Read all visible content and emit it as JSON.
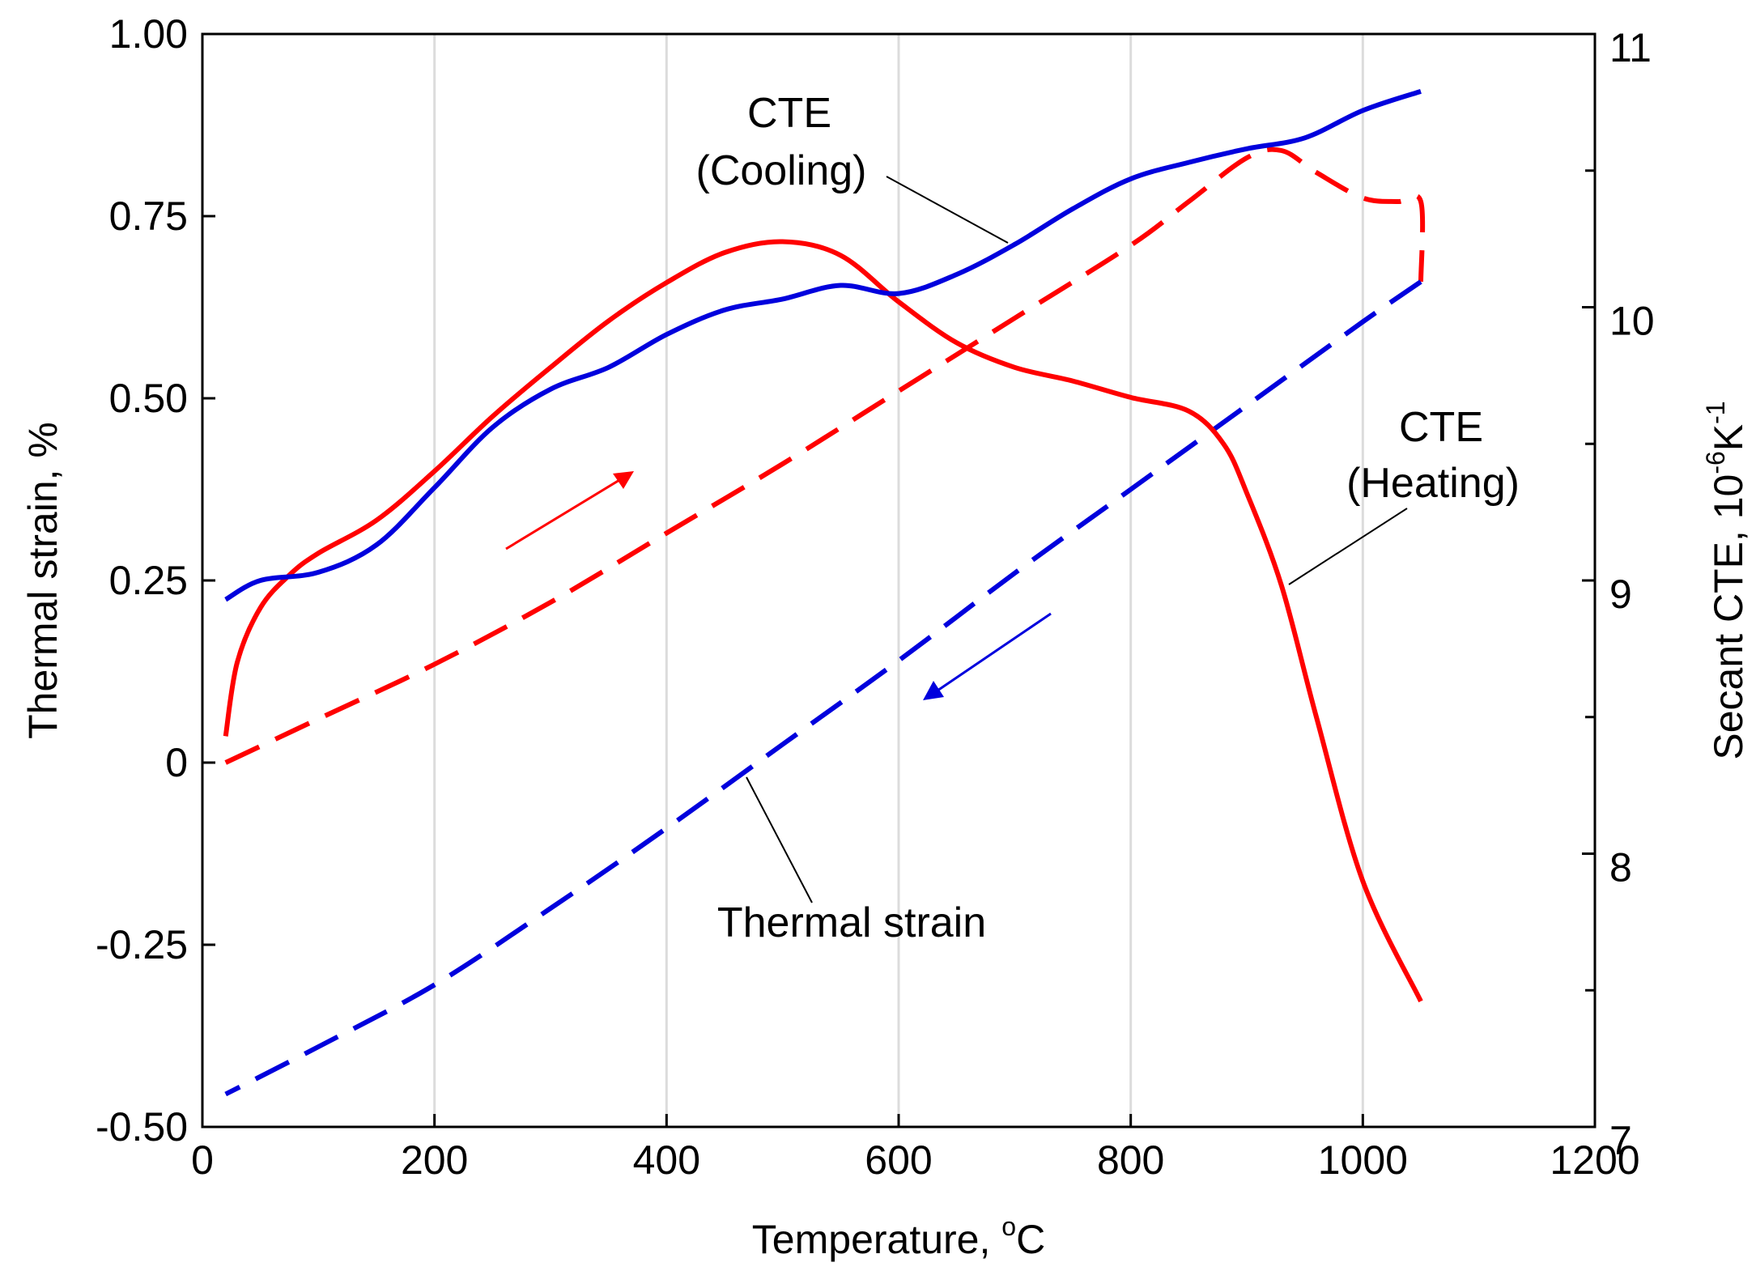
{
  "chart_data": {
    "type": "line",
    "xlabel": "Temperature, ",
    "xlabel_unit_sup": "o",
    "xlabel_unit_tail": "C",
    "ylabel_left": "Thermal strain, %",
    "ylabel_right_main": "Secant CTE,  10",
    "ylabel_right_sup1": "-6",
    "ylabel_right_mid": "K",
    "ylabel_right_sup2": "-1",
    "xlim": [
      0,
      1200
    ],
    "ylim_left": [
      -0.5,
      1.0
    ],
    "ylim_right": [
      7,
      11
    ],
    "x_ticks": [
      "0",
      "200",
      "400",
      "600",
      "800",
      "1000",
      "1200"
    ],
    "y_left_ticks": [
      "-0.50",
      "-0.25",
      "0",
      "0.25",
      "0.50",
      "0.75",
      "1.00"
    ],
    "y_right_ticks": [
      "7",
      "8",
      "9",
      "10",
      "11"
    ],
    "grid": "vertical lines at x ticks",
    "colors": {
      "red": "#ff0000",
      "blue": "#0000dd",
      "grid": "#dcdcdc"
    },
    "annotations": {
      "cte_cooling_line1": "CTE",
      "cte_cooling_line2": "(Cooling)",
      "cte_heating_line1": "CTE",
      "cte_heating_line2": "(Heating)",
      "thermal_strain": "Thermal strain"
    },
    "series": [
      {
        "key": "strain_heating",
        "axis": "left",
        "color": "#ff0000",
        "dash": true,
        "x": [
          20,
          100,
          200,
          300,
          400,
          500,
          600,
          700,
          800,
          850,
          900,
          930,
          960,
          1000,
          1030,
          1050,
          1050
        ],
        "y": [
          0.0,
          0.06,
          0.135,
          0.22,
          0.315,
          0.41,
          0.51,
          0.61,
          0.71,
          0.77,
          0.83,
          0.84,
          0.81,
          0.775,
          0.77,
          0.77,
          0.66
        ]
      },
      {
        "key": "strain_cooling",
        "axis": "left",
        "color": "#0000dd",
        "dash": true,
        "x": [
          1050,
          1000,
          900,
          800,
          700,
          600,
          500,
          400,
          300,
          200,
          100,
          20
        ],
        "y": [
          0.66,
          0.605,
          0.49,
          0.375,
          0.26,
          0.14,
          0.025,
          -0.09,
          -0.2,
          -0.305,
          -0.39,
          -0.455
        ]
      },
      {
        "key": "cte_heating",
        "axis": "right",
        "color": "#ff0000",
        "dash": false,
        "x": [
          20,
          30,
          50,
          75,
          100,
          150,
          200,
          250,
          300,
          350,
          400,
          450,
          500,
          550,
          600,
          650,
          700,
          750,
          800,
          850,
          880,
          900,
          930,
          960,
          1000,
          1050
        ],
        "y": [
          8.43,
          8.7,
          8.9,
          9.02,
          9.1,
          9.22,
          9.4,
          9.6,
          9.78,
          9.95,
          10.09,
          10.2,
          10.24,
          10.19,
          10.02,
          9.87,
          9.78,
          9.73,
          9.67,
          9.62,
          9.5,
          9.32,
          8.98,
          8.5,
          7.9,
          7.46
        ]
      },
      {
        "key": "cte_cooling",
        "axis": "right",
        "color": "#0000dd",
        "dash": false,
        "x": [
          20,
          50,
          100,
          150,
          200,
          250,
          300,
          350,
          400,
          450,
          500,
          550,
          600,
          650,
          700,
          750,
          800,
          850,
          900,
          950,
          1000,
          1050
        ],
        "y": [
          8.93,
          9.0,
          9.03,
          9.13,
          9.34,
          9.56,
          9.7,
          9.78,
          9.9,
          9.99,
          10.03,
          10.08,
          10.05,
          10.12,
          10.23,
          10.36,
          10.47,
          10.53,
          10.58,
          10.62,
          10.72,
          10.79
        ]
      }
    ]
  }
}
